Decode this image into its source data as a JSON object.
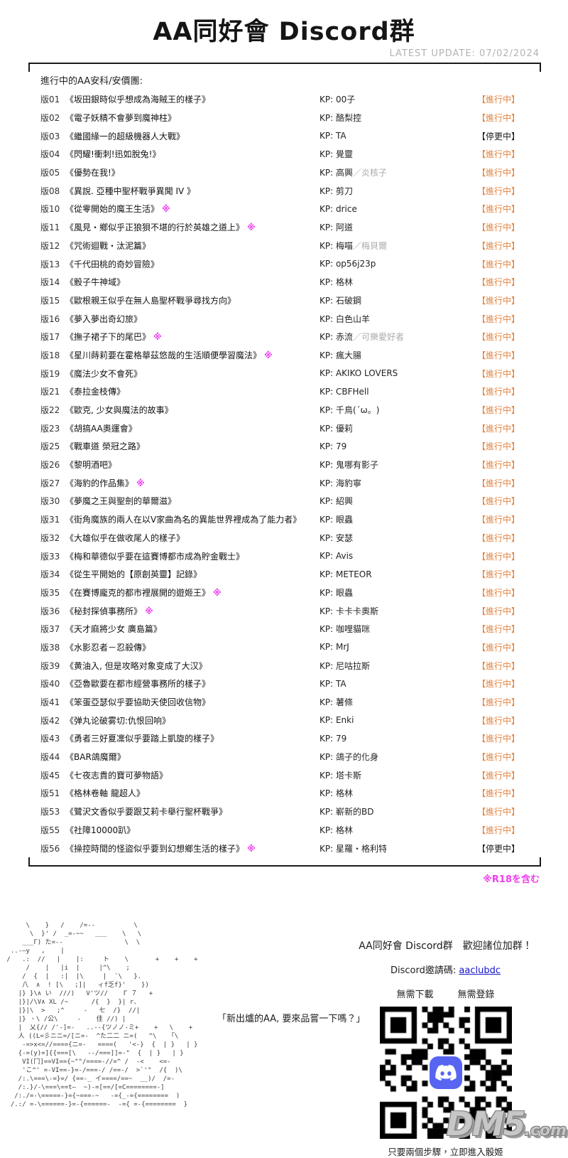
{
  "header": {
    "title": "AA同好會 Discord群",
    "update_label": "LATEST UPDATE: 07/02/2024"
  },
  "board": {
    "intro": "進行中的AA安科/安價團:",
    "kp_prefix": "KP: ",
    "status_active": "【進行中】",
    "status_paused": "【停更中】",
    "r18_mark": "※",
    "r18_note": "※R18を含む",
    "rows": [
      {
        "no": "版01",
        "title": "《坂田銀時似乎想成為海賊王的樣子》",
        "kp": "00子",
        "status": "active"
      },
      {
        "no": "版02",
        "title": "《電子妖精不會夢到魔神柱》",
        "kp": "酪梨控",
        "status": "active"
      },
      {
        "no": "版03",
        "title": "《繼國緣一的超級機器人大戰》",
        "kp": "TA",
        "status": "paused"
      },
      {
        "no": "版04",
        "title": "《閃耀!衝刺!迅如脫兔!》",
        "kp": "覺靈",
        "status": "active"
      },
      {
        "no": "版05",
        "title": "《優勢在我!》",
        "kp": "高興",
        "kp2": "／炎核子",
        "status": "active"
      },
      {
        "no": "版08",
        "title": "《異說. 亞種中聖杯戰爭異聞 IV 》",
        "kp": "剪刀",
        "status": "active"
      },
      {
        "no": "版10",
        "title": "《從零開始的魔王生活》",
        "r18": true,
        "kp": "drice",
        "status": "active"
      },
      {
        "no": "版11",
        "title": "《風見・鄉似乎正狼狽不堪的行於英雄之道上》",
        "r18": true,
        "kp": "阿道",
        "status": "active"
      },
      {
        "no": "版12",
        "title": "《咒術迴戰・汰泥篇》",
        "kp": "梅喵",
        "kp2": "／梅貝爾",
        "status": "active"
      },
      {
        "no": "版13",
        "title": "《千代田桃的奇妙冒險》",
        "kp": "op56j23p",
        "status": "active"
      },
      {
        "no": "版14",
        "title": "《骰子牛神域》",
        "kp": "格林",
        "status": "active"
      },
      {
        "no": "版15",
        "title": "《歐根親王似乎在無人島聖杯戰爭尋找方向》",
        "kp": "石破鋼",
        "status": "active"
      },
      {
        "no": "版16",
        "title": "《夢入夢出奇幻旅》",
        "kp": "白色山羊",
        "status": "active"
      },
      {
        "no": "版17",
        "title": "《撫子裙子下的尾巴》",
        "r18": true,
        "kp": "赤流",
        "kp2": "／可樂愛好者",
        "status": "active"
      },
      {
        "no": "版18",
        "title": "《星川蒔莉要在霍格華茲悠哉的生活順便學習魔法》",
        "r18": true,
        "kp": "瘋大腸",
        "status": "active"
      },
      {
        "no": "版19",
        "title": "《魔法少女不會死》",
        "kp": "AKIKO LOVERS",
        "status": "active"
      },
      {
        "no": "版21",
        "title": "《泰拉金枝傳》",
        "kp": "CBFHell",
        "status": "active"
      },
      {
        "no": "版22",
        "title": "《歐克, 少女與魔法的故事》",
        "kp": "千鳥(´ω。)",
        "status": "active"
      },
      {
        "no": "版23",
        "title": "《胡搞AA奧運會》",
        "kp": "優莉",
        "status": "active"
      },
      {
        "no": "版25",
        "title": "《戰車道 榮冠之路》",
        "kp": "79",
        "status": "active"
      },
      {
        "no": "版26",
        "title": "《黎明酒吧》",
        "kp": "鬼哪有影子",
        "status": "active"
      },
      {
        "no": "版27",
        "title": "《海豹的作品集》",
        "r18": true,
        "kp": "海豹寧",
        "status": "active"
      },
      {
        "no": "版30",
        "title": "《夢魔之王與聖劍的華爾滋》",
        "kp": "紹興",
        "status": "active"
      },
      {
        "no": "版31",
        "title": "《街角魔族的兩人在以V家曲為名的異能世界裡成為了能力者》",
        "kp": "眼蟲",
        "status": "active"
      },
      {
        "no": "版32",
        "title": "《大雄似乎在做收尾人的樣子》",
        "kp": "安瑟",
        "status": "active"
      },
      {
        "no": "版33",
        "title": "《梅和華德似乎要在這賽博都市成為貯金戰士》",
        "kp": "Avis",
        "status": "active"
      },
      {
        "no": "版34",
        "title": "《從生平開始的【原創英靈】記錄》",
        "kp": "METEOR",
        "status": "active"
      },
      {
        "no": "版35",
        "title": "《在賽博龐克的都市裡展開的遊姬王》",
        "r18": true,
        "kp": "眼蟲",
        "status": "active"
      },
      {
        "no": "版36",
        "title": "《秘封探偵事務所》",
        "r18": true,
        "kp": "卡卡卡奧斯",
        "status": "active"
      },
      {
        "no": "版37",
        "title": "《天才麻將少女 廣島篇》",
        "kp": "咖哩貓咪",
        "status": "active"
      },
      {
        "no": "版38",
        "title": "《水影忍者－忍殺傳》",
        "kp": "MrJ",
        "status": "active"
      },
      {
        "no": "版39",
        "title": "《黄油入, 但是攻略对象变成了大汉》",
        "kp": "尼咕拉斯",
        "status": "active"
      },
      {
        "no": "版40",
        "title": "《亞魯歐要在都市經營事務所的樣子》",
        "kp": "TA",
        "status": "active"
      },
      {
        "no": "版41",
        "title": "《笨蛋亞瑟似乎要協助天使回收信物》",
        "kp": "薯條",
        "status": "active"
      },
      {
        "no": "版42",
        "title": "《弹丸论破雾切:仇恨回响》",
        "kp": "Enki",
        "status": "active"
      },
      {
        "no": "版43",
        "title": "《勇者三好夏凜似乎要踏上凱旋的樣子》",
        "kp": "79",
        "status": "active"
      },
      {
        "no": "版44",
        "title": "《BAR鴿魔爾》",
        "kp": "鴿子的化身",
        "status": "active"
      },
      {
        "no": "版45",
        "title": "《七夜志貴的寶可夢物語》",
        "kp": "塔卡斯",
        "status": "active"
      },
      {
        "no": "版51",
        "title": "《格林卷軸 龍超人》",
        "kp": "格林",
        "status": "active"
      },
      {
        "no": "版53",
        "title": "《鷺沢文香似乎要跟艾莉卡舉行聖杯戰爭》",
        "kp": "嶄新的BD",
        "status": "active"
      },
      {
        "no": "版55",
        "title": "《社障10000趴》",
        "kp": "格林",
        "status": "active"
      },
      {
        "no": "版56",
        "title": "《操控時間的怪盜似乎要到幻想鄉生活的樣子》",
        "r18": true,
        "kp": "星羅・格利特",
        "status": "paused"
      }
    ]
  },
  "footer": {
    "speech": "「新出爐的AA, 要來品嘗一下嗎？」",
    "invite_heading": "AA同好會 Discord群　歡迎諸位加群！",
    "invite_code_label": "Discord邀請碼: ",
    "invite_code": "aaclubdc",
    "no_download": "無需下載",
    "no_register": "無需登錄",
    "caption": "只要兩個步驟，立即進入骰姬",
    "watermark": "DM5",
    "watermark_suffix": ".com",
    "ascii_art": [
      "      \\    }   /    /=--          \\",
      "       \\  }' /  _=-~~   ___    \\   \\",
      "     ___Γ) た=--                \\  \\",
      "  ..-—y   ,    |",
      " /   .:  //   |    |:     ト    \\       +    +    +",
      "      /    |   |i  |     |^\\    ;",
      "     /  {  |   :|  |\\     |  `\\   }.",
      "     八  ∧  ! [\\   ;]|   ィf乏f}'    })",
      "    |} }\\∧ い  ///)   V'ツ//    Γ ７   +",
      "    |}|/\\V∧ XL /~      /{  }  }| r、",
      "    |}|\\  >   ;^     -   七  /}  //|",
      "    |} 、\\ /公\\     -    佳 //) |",
      "    |  乂{// /'-]=-   ..--{ツノノ-ミ+    +   \\    +",
      "    人 ((L=彡ニニ=/[ニ=-  ^た二二 ニ=(   ^\\   「\\",
      "     -=>x<=//===={ニ=-   ====(   '<-}  {  | }   | }",
      "    {-=(y)=]{{===[\\   --/===]]=-\"  {  | }   | }",
      "     VI(冂]==VI=={~\"\"/====-//=^ /  -<    <=-",
      "     'こ^' =-VI==-}=-/===-/ /==-/  >`'\"  /{  )\\",
      "    /:.\\===\\-=}=/ {==-_ イ====/==~  __)/  /=-",
      "    /:.}/-\\===\\==t—  ~)-=[==/[=C========-]",
      "   /:./=-\\=====-}={~===-~   -={_-={========  )",
      "  /.:/ =-\\======-}=-{======-  -={ =-{========  }"
    ]
  },
  "colors": {
    "active": "#e2823e",
    "paused": "#1b1b1b",
    "magenta": "#ee3fee",
    "gray": "#ababab",
    "link": "#1414cc"
  }
}
